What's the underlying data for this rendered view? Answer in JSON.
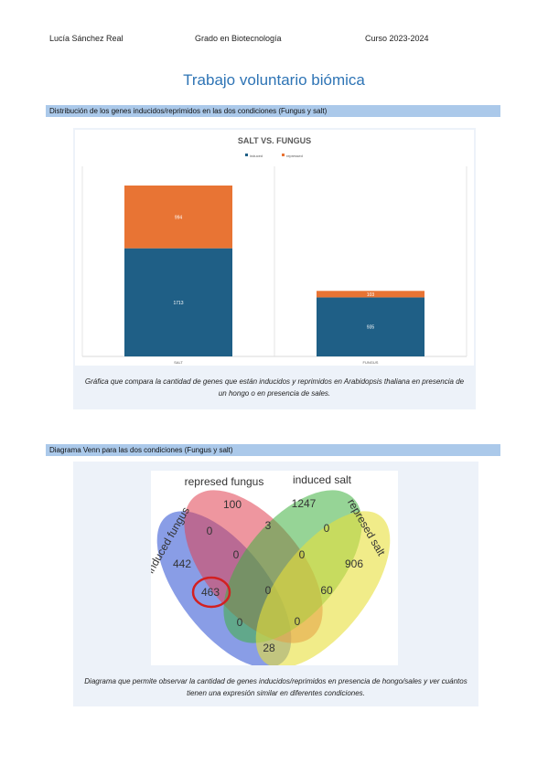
{
  "header": {
    "author": "Lucía Sánchez Real",
    "degree": "Grado en Biotecnología",
    "course": "Curso 2023-2024"
  },
  "title": "Trabajo voluntario biómica",
  "section1": {
    "heading": "Distribución de los genes inducidos/reprimidos en las dos condiciones (Fungus y salt)",
    "chart_data": {
      "type": "bar",
      "stacked": true,
      "title": "SALT VS. FUNGUS",
      "categories": [
        "SALT",
        "FUNGUS"
      ],
      "series": [
        {
          "name": "induced",
          "color": "#1f5f86",
          "values": [
            1713,
            935
          ]
        },
        {
          "name": "repressed",
          "color": "#e87434",
          "values": [
            994,
            103
          ]
        }
      ],
      "legend": "top"
    },
    "caption": "Gráfica que compara la cantidad de genes que están inducidos y reprimidos en Arabidopsis thaliana en presencia de un hongo o en presencia de sales."
  },
  "section2": {
    "heading": "Diagrama Venn para las dos condiciones (Fungus y salt)",
    "venn": {
      "sets": [
        "represed fungus",
        "induced salt",
        "induced fungus",
        "represed salt"
      ],
      "regions": [
        100,
        1247,
        0,
        3,
        0,
        442,
        0,
        0,
        906,
        463,
        0,
        60,
        0,
        0,
        28
      ]
    },
    "caption": "Diagrama que permite observar la cantidad de genes inducidos/reprimidos en presencia de hongo/sales y ver cuántos tienen una expresión similar en diferentes condiciones."
  }
}
